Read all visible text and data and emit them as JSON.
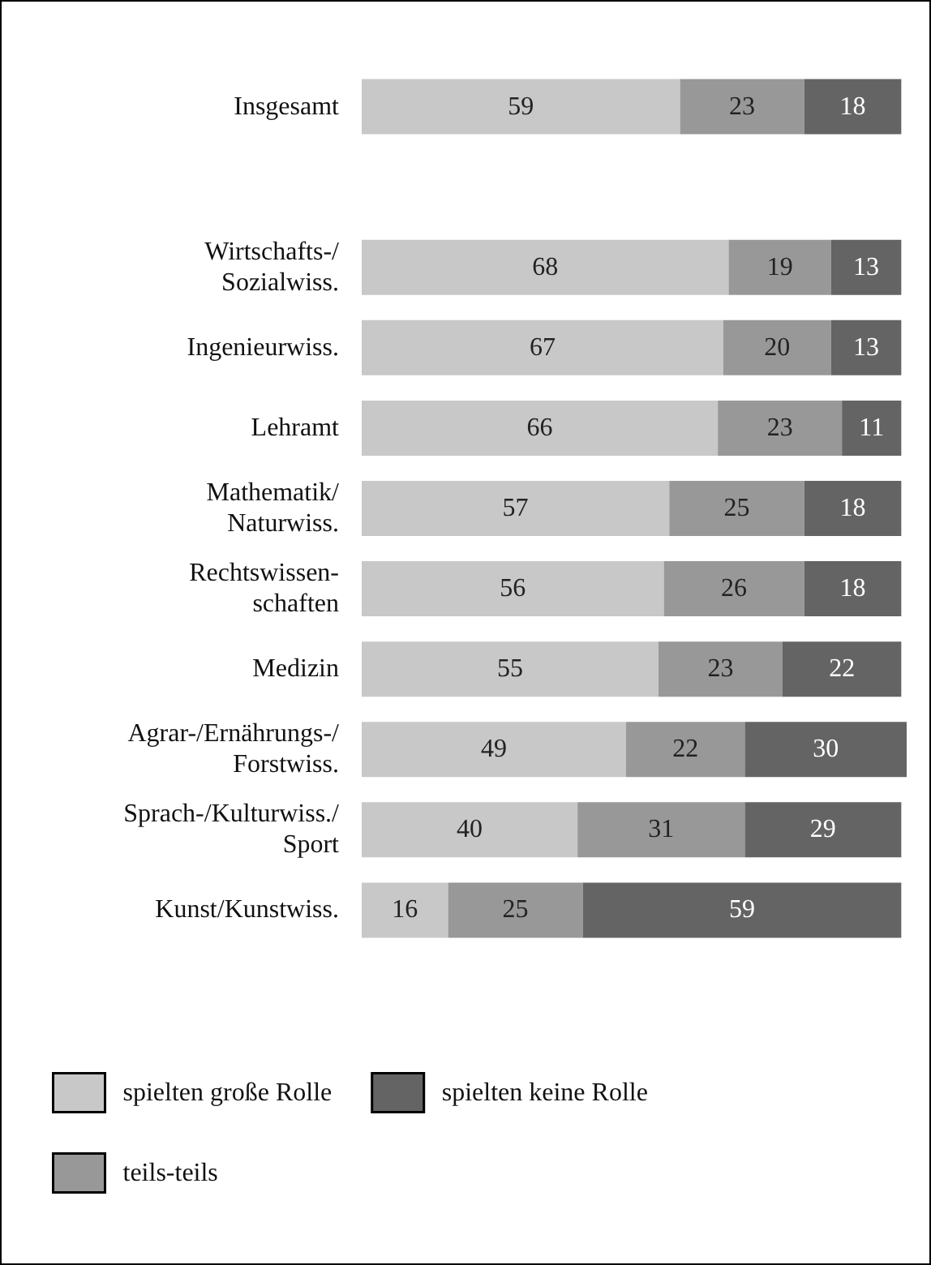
{
  "chart_data": {
    "type": "bar",
    "orientation": "horizontal",
    "stacked": true,
    "data_labels": true,
    "legend": "bottom left",
    "xlim": [
      0,
      101
    ],
    "categories": [
      "Insgesamt",
      null,
      "Wirtschafts-/\nSozialwiss.",
      "Ingenieurwiss.",
      "Lehramt",
      "Mathematik/\nNaturwiss.",
      "Rechtswissen-\nschaften",
      "Medizin",
      "Agrar-/Ernährungs-/\nForstwiss.",
      "Sprach-/Kulturwiss./\nSport",
      "Kunst/Kunstwiss."
    ],
    "series": [
      {
        "name": "spielten große Rolle",
        "color": "#c8c8c8",
        "values": [
          59,
          null,
          68,
          67,
          66,
          57,
          56,
          55,
          49,
          40,
          16
        ]
      },
      {
        "name": "teils-teils",
        "color": "#989898",
        "values": [
          23,
          null,
          19,
          20,
          23,
          25,
          26,
          23,
          22,
          31,
          25
        ]
      },
      {
        "name": "spielten keine Rolle",
        "color": "#646464",
        "values": [
          18,
          null,
          13,
          13,
          11,
          18,
          18,
          22,
          30,
          29,
          59
        ]
      }
    ]
  }
}
